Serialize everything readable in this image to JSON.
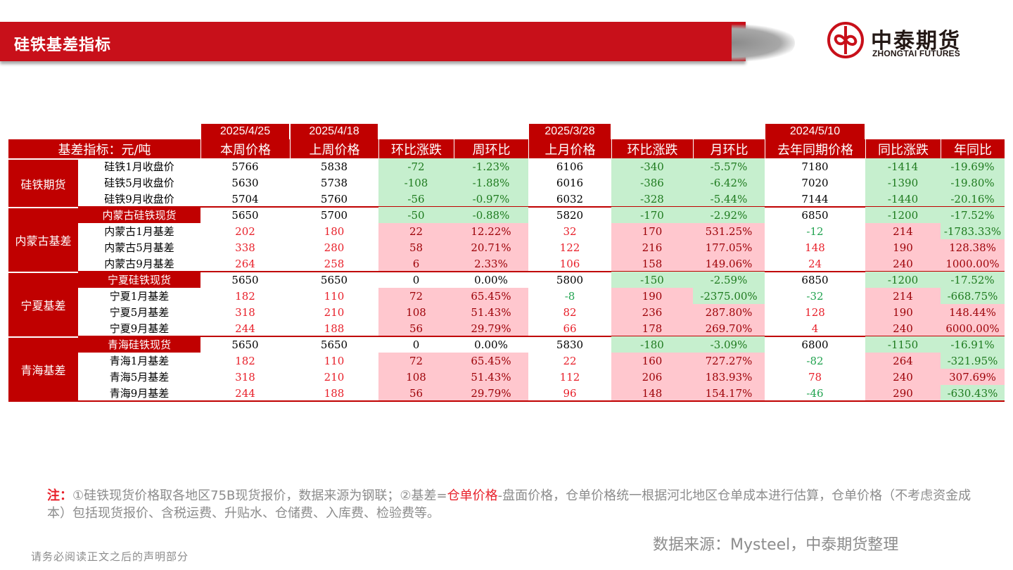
{
  "header": {
    "title": "硅铁基差指标",
    "logo_cn": "中泰期货",
    "logo_en": "ZHONGTAI FUTURES"
  },
  "table": {
    "dates": {
      "this_week": "2025/4/25",
      "last_week": "2025/4/18",
      "last_month": "2025/3/28",
      "last_year": "2024/5/10"
    },
    "columns": [
      "基差指标：元/吨",
      "本周价格",
      "上周价格",
      "环比涨跌",
      "周环比",
      "上月价格",
      "环比涨跌",
      "月环比",
      "去年同期价格",
      "同比涨跌",
      "年同比"
    ],
    "groups": [
      {
        "label": "硅铁期货",
        "rows": [
          {
            "name": "硅铁1月收盘价",
            "values": [
              "5766",
              "5838",
              "-72",
              "-1.23%",
              "6106",
              "-340",
              "-5.57%",
              "7180",
              "-1414",
              "-19.69%"
            ]
          },
          {
            "name": "硅铁5月收盘价",
            "values": [
              "5630",
              "5738",
              "-108",
              "-1.88%",
              "6016",
              "-386",
              "-6.42%",
              "7020",
              "-1390",
              "-19.80%"
            ]
          },
          {
            "name": "硅铁9月收盘价",
            "values": [
              "5704",
              "5760",
              "-56",
              "-0.97%",
              "6032",
              "-328",
              "-5.44%",
              "7144",
              "-1440",
              "-20.16%"
            ]
          }
        ]
      },
      {
        "label": "内蒙古基差",
        "rows": [
          {
            "name": "内蒙古硅铁现货",
            "values": [
              "5650",
              "5700",
              "-50",
              "-0.88%",
              "5820",
              "-170",
              "-2.92%",
              "6850",
              "-1200",
              "-17.52%"
            ]
          },
          {
            "name": "内蒙古1月基差",
            "values": [
              "202",
              "180",
              "22",
              "12.22%",
              "32",
              "170",
              "531.25%",
              "-12",
              "214",
              "-1783.33%"
            ]
          },
          {
            "name": "内蒙古5月基差",
            "values": [
              "338",
              "280",
              "58",
              "20.71%",
              "122",
              "216",
              "177.05%",
              "148",
              "190",
              "128.38%"
            ]
          },
          {
            "name": "内蒙古9月基差",
            "values": [
              "264",
              "258",
              "6",
              "2.33%",
              "106",
              "158",
              "149.06%",
              "24",
              "240",
              "1000.00%"
            ]
          }
        ]
      },
      {
        "label": "宁夏基差",
        "rows": [
          {
            "name": "宁夏硅铁现货",
            "values": [
              "5650",
              "5650",
              "0",
              "0.00%",
              "5800",
              "-150",
              "-2.59%",
              "6850",
              "-1200",
              "-17.52%"
            ]
          },
          {
            "name": "宁夏1月基差",
            "values": [
              "182",
              "110",
              "72",
              "65.45%",
              "-8",
              "190",
              "-2375.00%",
              "-32",
              "214",
              "-668.75%"
            ]
          },
          {
            "name": "宁夏5月基差",
            "values": [
              "318",
              "210",
              "108",
              "51.43%",
              "82",
              "236",
              "287.80%",
              "128",
              "190",
              "148.44%"
            ]
          },
          {
            "name": "宁夏9月基差",
            "values": [
              "244",
              "188",
              "56",
              "29.79%",
              "66",
              "178",
              "269.70%",
              "4",
              "240",
              "6000.00%"
            ]
          }
        ]
      },
      {
        "label": "青海基差",
        "rows": [
          {
            "name": "青海硅铁现货",
            "values": [
              "5650",
              "5650",
              "0",
              "0.00%",
              "5830",
              "-180",
              "-3.09%",
              "6800",
              "-1150",
              "-16.91%"
            ]
          },
          {
            "name": "青海1月基差",
            "values": [
              "182",
              "110",
              "72",
              "65.45%",
              "22",
              "160",
              "727.27%",
              "-82",
              "264",
              "-321.95%"
            ]
          },
          {
            "name": "青海5月基差",
            "values": [
              "318",
              "210",
              "108",
              "51.43%",
              "112",
              "206",
              "183.93%",
              "78",
              "240",
              "307.69%"
            ]
          },
          {
            "name": "青海9月基差",
            "values": [
              "244",
              "188",
              "56",
              "29.79%",
              "96",
              "148",
              "154.17%",
              "-46",
              "290",
              "-630.43%"
            ]
          }
        ]
      }
    ]
  },
  "colors": {
    "brand_red": "#c8101a",
    "header_red": "#c00000",
    "up_bg": "#ffc7ce",
    "up_text": "#9c0006",
    "down_bg": "#c6efce",
    "down_text": "#1e7a1e"
  },
  "note": {
    "label": "注：",
    "part1": "①硅铁现货价格取各地区75B现货报价，数据来源为钢联；②基差=",
    "highlight": "仓单价格",
    "part2": "-盘面价格，仓单价格统一根据河北地区仓单成本进行估算，仓单价格（不考虑资金成本）包括现货报价、含税运费、升贴水、仓储费、入库费、检验费等。"
  },
  "source": "数据来源：Mysteel，中泰期货整理",
  "disclaimer": "请务必阅读正文之后的声明部分"
}
